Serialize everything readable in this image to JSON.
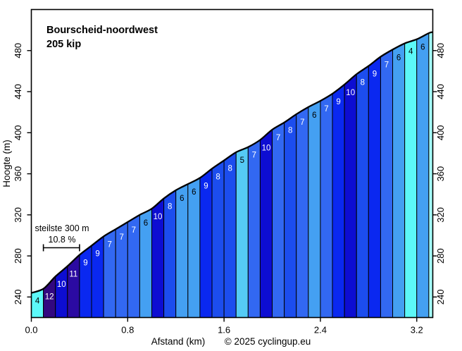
{
  "header": {
    "title": "Bourscheid-noordwest",
    "subtitle": "205 kip"
  },
  "footer": {
    "copyright": "© 2025 cyclingup.eu"
  },
  "chart_data": {
    "type": "area",
    "title": "Bourscheid-noordwest",
    "subtitle": "205 kip",
    "xlabel": "Afstand (km)",
    "ylabel": "Hoogte (m)",
    "x_ticks": [
      "0.0",
      "0.8",
      "1.6",
      "2.4",
      "3.2"
    ],
    "y_ticks": [
      240,
      280,
      320,
      360,
      400,
      440,
      480
    ],
    "xlim": [
      0,
      3.333
    ],
    "ylim": [
      220,
      520
    ],
    "grid": false,
    "legend": "none",
    "start_elevation_m": 244,
    "end_elevation_m": 498,
    "segment_length_km": 0.1,
    "segments_gradient_pct": [
      4,
      12,
      10,
      11,
      9,
      9,
      7,
      7,
      7,
      6,
      10,
      8,
      6,
      6,
      9,
      8,
      8,
      5,
      7,
      10,
      7,
      8,
      7,
      6,
      7,
      9,
      10,
      8,
      9,
      7,
      6,
      4,
      6
    ],
    "final_partial_segment": {
      "length_km": 0.033,
      "gradient_pct": 3,
      "labeled": false
    },
    "gradient_colors": {
      "3": "#A5FDF8",
      "4": "#5CF8F8",
      "5": "#55CBF5",
      "6": "#44A0F2",
      "7": "#3268F2",
      "8": "#1C4DEE",
      "9": "#0A28F0",
      "10": "#0D0DD2",
      "11": "#2B0AA2",
      "12": "#320880"
    },
    "label_white_from_pct": 7,
    "label_color_light": "#FFFFFF",
    "label_color_dark": "#000000",
    "line_color": "#000000",
    "annotation": {
      "line1": "steilste 300 m",
      "line2": "10.8 %",
      "bracket_from_km": 0.1,
      "bracket_to_km": 0.4
    }
  }
}
